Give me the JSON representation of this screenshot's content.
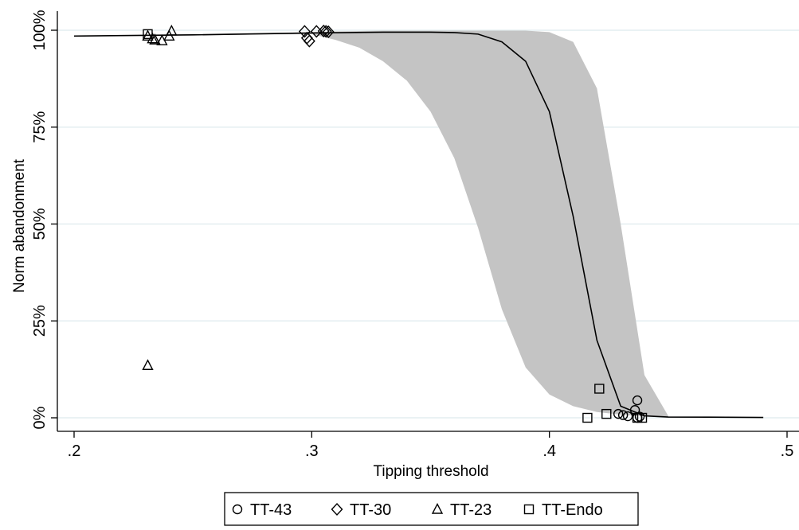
{
  "chart_data": {
    "type": "line",
    "title": "",
    "xlabel": "Tipping threshold",
    "ylabel": "Norm abandonment",
    "xlim": [
      0.2,
      0.5
    ],
    "ylim": [
      0,
      1
    ],
    "x_ticks": [
      0.2,
      0.3,
      0.4,
      0.5
    ],
    "x_tick_labels": [
      ".2",
      ".3",
      ".4",
      ".5"
    ],
    "y_ticks": [
      0,
      0.25,
      0.5,
      0.75,
      1.0
    ],
    "y_tick_labels": [
      "0%",
      "25%",
      "50%",
      "75%",
      "100%"
    ],
    "grid": "horizontal",
    "legend_position": "bottom",
    "colors": {
      "line": "#000000",
      "band": "#c4c4c4",
      "grid": "#e3eef0",
      "axis": "#000000"
    },
    "fitted_line": {
      "x": [
        0.2,
        0.25,
        0.3,
        0.33,
        0.35,
        0.36,
        0.37,
        0.38,
        0.39,
        0.4,
        0.41,
        0.42,
        0.43,
        0.44,
        0.45,
        0.49
      ],
      "y": [
        0.985,
        0.988,
        0.993,
        0.995,
        0.995,
        0.994,
        0.99,
        0.97,
        0.92,
        0.79,
        0.52,
        0.2,
        0.03,
        0.005,
        0.002,
        0.001
      ]
    },
    "confidence_band": {
      "x": [
        0.2,
        0.3,
        0.31,
        0.32,
        0.33,
        0.34,
        0.35,
        0.36,
        0.37,
        0.38,
        0.39,
        0.4,
        0.41,
        0.42,
        0.43,
        0.44,
        0.45
      ],
      "upper": [
        0.985,
        0.995,
        0.997,
        0.998,
        0.999,
        0.999,
        0.999,
        0.999,
        0.999,
        0.999,
        0.999,
        0.995,
        0.97,
        0.85,
        0.5,
        0.11,
        0.005
      ],
      "lower": [
        0.985,
        0.99,
        0.975,
        0.955,
        0.92,
        0.87,
        0.79,
        0.67,
        0.49,
        0.28,
        0.13,
        0.06,
        0.03,
        0.015,
        0.008,
        0.004,
        0.002
      ]
    },
    "series": [
      {
        "name": "TT-43",
        "marker": "circle",
        "points": [
          [
            0.429,
            0.01
          ],
          [
            0.431,
            0.007
          ],
          [
            0.433,
            0.004
          ],
          [
            0.436,
            0.02
          ],
          [
            0.437,
            0.045
          ],
          [
            0.437,
            0.0
          ],
          [
            0.438,
            0.003
          ]
        ]
      },
      {
        "name": "TT-30",
        "marker": "diamond",
        "points": [
          [
            0.297,
            0.997
          ],
          [
            0.298,
            0.98
          ],
          [
            0.299,
            0.972
          ],
          [
            0.302,
            0.997
          ],
          [
            0.305,
            0.998
          ],
          [
            0.306,
            0.997
          ],
          [
            0.307,
            0.996
          ]
        ]
      },
      {
        "name": "TT-23",
        "marker": "triangle",
        "points": [
          [
            0.231,
            0.135
          ],
          [
            0.231,
            0.985
          ],
          [
            0.233,
            0.978
          ],
          [
            0.234,
            0.975
          ],
          [
            0.237,
            0.973
          ],
          [
            0.24,
            0.985
          ],
          [
            0.241,
            0.998
          ]
        ]
      },
      {
        "name": "TT-Endo",
        "marker": "square",
        "points": [
          [
            0.231,
            0.99
          ],
          [
            0.416,
            0.0
          ],
          [
            0.421,
            0.075
          ],
          [
            0.424,
            0.01
          ],
          [
            0.437,
            0.0
          ],
          [
            0.439,
            0.0
          ]
        ]
      }
    ]
  }
}
